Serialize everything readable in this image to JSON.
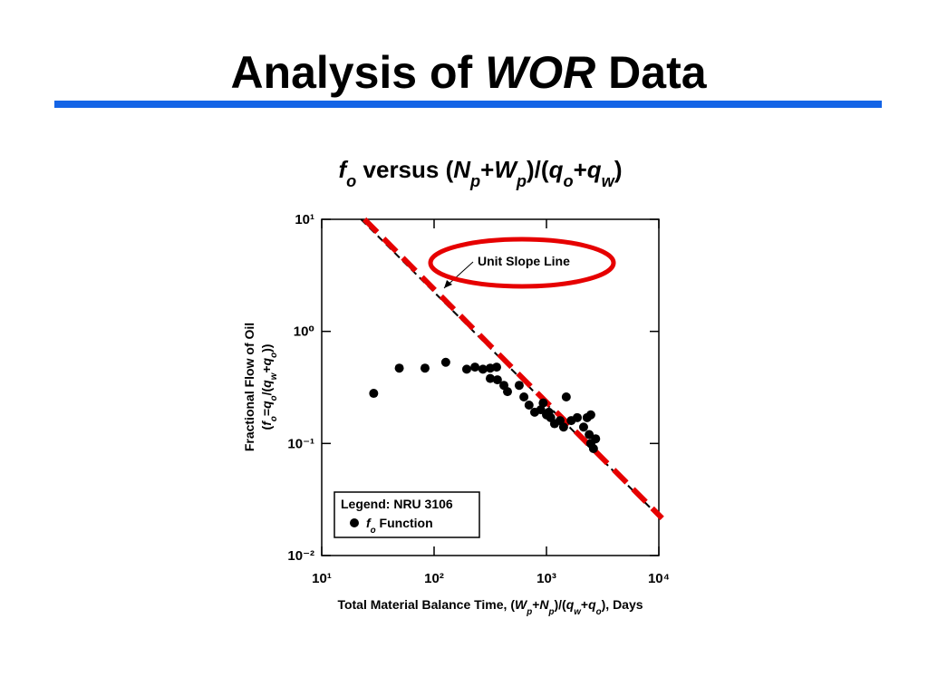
{
  "slide": {
    "title_parts": [
      {
        "text": "Analysis of "
      },
      {
        "text": "WOR",
        "italic": true
      },
      {
        "text": " Data"
      }
    ],
    "rule_color": "#1464e6"
  },
  "chart_data": {
    "type": "scatter",
    "subtitle_parts": [
      {
        "text": "f",
        "italic": true
      },
      {
        "text": "o",
        "italic": true,
        "sub": true
      },
      {
        "text": " versus ("
      },
      {
        "text": "N",
        "italic": true
      },
      {
        "text": "p",
        "italic": true,
        "sub": true
      },
      {
        "text": "+"
      },
      {
        "text": "W",
        "italic": true
      },
      {
        "text": "p",
        "italic": true,
        "sub": true
      },
      {
        "text": ")/("
      },
      {
        "text": "q",
        "italic": true
      },
      {
        "text": "o",
        "italic": true,
        "sub": true
      },
      {
        "text": "+"
      },
      {
        "text": "q",
        "italic": true
      },
      {
        "text": "w",
        "italic": true,
        "sub": true
      },
      {
        "text": ")"
      }
    ],
    "x_label_parts": [
      {
        "text": "Total Material Balance Time, ("
      },
      {
        "text": "W",
        "italic": true
      },
      {
        "text": "p",
        "italic": true,
        "sub": true
      },
      {
        "text": "+"
      },
      {
        "text": "N",
        "italic": true
      },
      {
        "text": "p",
        "italic": true,
        "sub": true
      },
      {
        "text": ")/("
      },
      {
        "text": "q",
        "italic": true
      },
      {
        "text": "w",
        "italic": true,
        "sub": true
      },
      {
        "text": "+"
      },
      {
        "text": "q",
        "italic": true
      },
      {
        "text": "o",
        "italic": true,
        "sub": true
      },
      {
        "text": "), Days"
      }
    ],
    "y_label_lines": [
      [
        {
          "text": "Fractional Flow of Oil"
        }
      ],
      [
        {
          "text": "("
        },
        {
          "text": "f",
          "italic": true
        },
        {
          "text": "o",
          "italic": true,
          "sub": true
        },
        {
          "text": "="
        },
        {
          "text": "q",
          "italic": true
        },
        {
          "text": "o",
          "italic": true,
          "sub": true
        },
        {
          "text": "/("
        },
        {
          "text": "q",
          "italic": true
        },
        {
          "text": "w",
          "italic": true,
          "sub": true
        },
        {
          "text": "+"
        },
        {
          "text": "q",
          "italic": true
        },
        {
          "text": "o",
          "italic": true,
          "sub": true
        },
        {
          "text": "))"
        }
      ]
    ],
    "x_log": true,
    "y_log": true,
    "xlim": [
      10,
      10000
    ],
    "ylim": [
      0.01,
      10
    ],
    "xticks": [
      {
        "value": 10,
        "label": "10¹"
      },
      {
        "value": 100,
        "label": "10²"
      },
      {
        "value": 1000,
        "label": "10³"
      },
      {
        "value": 10000,
        "label": "10⁴"
      }
    ],
    "yticks": [
      {
        "value": 0.01,
        "label": "10⁻²"
      },
      {
        "value": 0.1,
        "label": "10⁻¹"
      },
      {
        "value": 1,
        "label": "10⁰"
      },
      {
        "value": 10,
        "label": "10¹"
      }
    ],
    "legend_title": "Legend: NRU 3106",
    "legend_position": "lower left",
    "series": [
      {
        "name_parts": [
          {
            "text": "f",
            "italic": true
          },
          {
            "text": "o",
            "italic": true,
            "sub": true
          },
          {
            "text": " Function"
          }
        ],
        "color": "#000000",
        "x": [
          29,
          49,
          83,
          127,
          195,
          231,
          272,
          316,
          360,
          316,
          366,
          418,
          450,
          572,
          630,
          700,
          785,
          890,
          935,
          1000,
          1050,
          1090,
          1180,
          1320,
          1420,
          1500,
          1660,
          1880,
          2140,
          2300,
          2400,
          2480,
          2480,
          2620,
          2740
        ],
        "values": [
          0.28,
          0.47,
          0.47,
          0.53,
          0.46,
          0.48,
          0.46,
          0.47,
          0.48,
          0.38,
          0.37,
          0.33,
          0.29,
          0.33,
          0.26,
          0.22,
          0.19,
          0.2,
          0.23,
          0.18,
          0.19,
          0.17,
          0.15,
          0.16,
          0.14,
          0.26,
          0.16,
          0.17,
          0.14,
          0.17,
          0.12,
          0.1,
          0.18,
          0.09,
          0.11
        ]
      }
    ],
    "unit_slope_line": {
      "x": [
        22.4,
        10000
      ],
      "y": [
        10,
        0.0224
      ],
      "color": "#000000"
    },
    "highlight_line": {
      "x": [
        24,
        10700
      ],
      "y": [
        10,
        0.0215
      ],
      "color": "#e60000"
    },
    "annotation": "Unit Slope Line",
    "annotation_color": "#e60000"
  }
}
